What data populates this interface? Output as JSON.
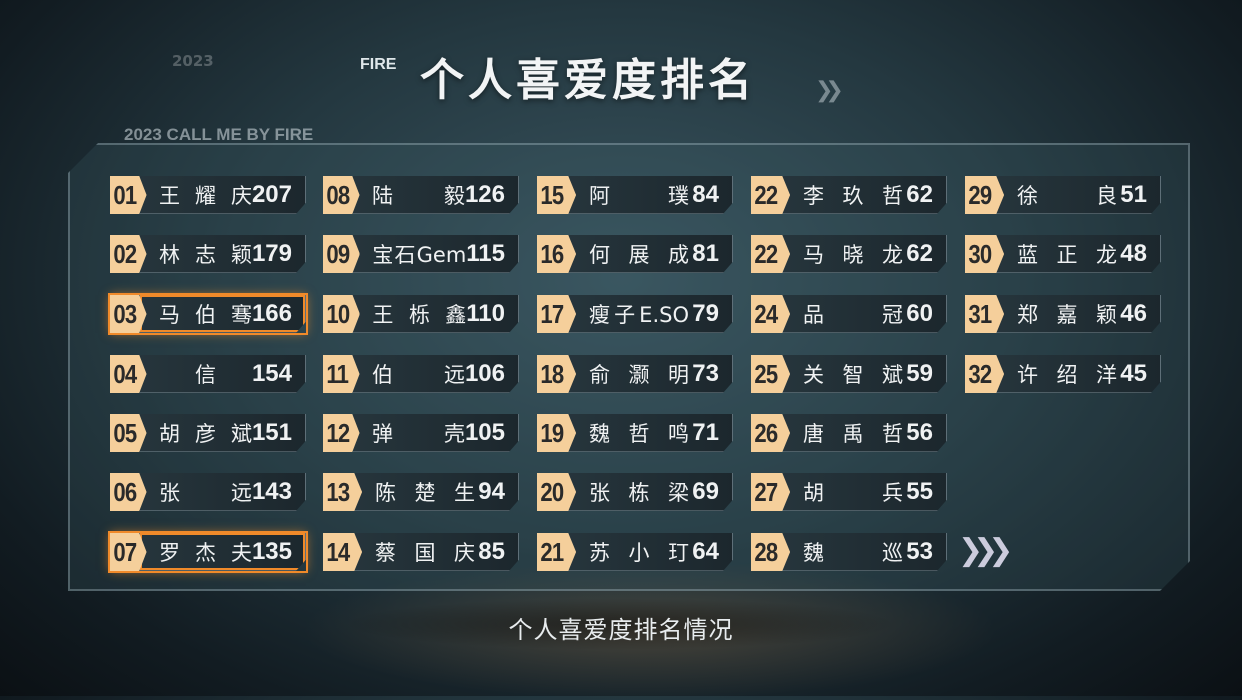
{
  "header": {
    "faded_year": "2023",
    "logo_text": "FIRE",
    "title": "个人喜爱度排名",
    "subtitle": "2023 CALL ME BY FIRE"
  },
  "accent_color": "#f5cf9b",
  "highlight_color": "#f08a2a",
  "columns": [
    [
      {
        "rank": "01",
        "name": "王耀庆",
        "score": "207"
      },
      {
        "rank": "02",
        "name": "林志颖",
        "score": "179"
      },
      {
        "rank": "03",
        "name": "马伯骞",
        "score": "166",
        "highlight": true
      },
      {
        "rank": "04",
        "name": "信",
        "score": "154"
      },
      {
        "rank": "05",
        "name": "胡彦斌",
        "score": "151"
      },
      {
        "rank": "06",
        "name": "张　远",
        "score": "143"
      },
      {
        "rank": "07",
        "name": "罗杰夫",
        "score": "135",
        "highlight": true
      }
    ],
    [
      {
        "rank": "08",
        "name": "陆　毅",
        "score": "126"
      },
      {
        "rank": "09",
        "name": "宝石Gem",
        "score": "115"
      },
      {
        "rank": "10",
        "name": "王栎鑫",
        "score": "110"
      },
      {
        "rank": "11",
        "name": "伯　远",
        "score": "106"
      },
      {
        "rank": "12",
        "name": "弹　壳",
        "score": "105"
      },
      {
        "rank": "13",
        "name": "陈楚生",
        "score": "94"
      },
      {
        "rank": "14",
        "name": "蔡国庆",
        "score": "85"
      }
    ],
    [
      {
        "rank": "15",
        "name": "阿　璞",
        "score": "84"
      },
      {
        "rank": "16",
        "name": "何展成",
        "score": "81"
      },
      {
        "rank": "17",
        "name": "瘦子E.SO",
        "score": "79"
      },
      {
        "rank": "18",
        "name": "俞灏明",
        "score": "73"
      },
      {
        "rank": "19",
        "name": "魏哲鸣",
        "score": "71"
      },
      {
        "rank": "20",
        "name": "张栋梁",
        "score": "69"
      },
      {
        "rank": "21",
        "name": "苏小玎",
        "score": "64"
      }
    ],
    [
      {
        "rank": "22",
        "name": "李玖哲",
        "score": "62"
      },
      {
        "rank": "22",
        "name": "马晓龙",
        "score": "62"
      },
      {
        "rank": "24",
        "name": "品　冠",
        "score": "60"
      },
      {
        "rank": "25",
        "name": "关智斌",
        "score": "59"
      },
      {
        "rank": "26",
        "name": "唐禹哲",
        "score": "56"
      },
      {
        "rank": "27",
        "name": "胡　兵",
        "score": "55"
      },
      {
        "rank": "28",
        "name": "魏　巡",
        "score": "53"
      }
    ],
    [
      {
        "rank": "29",
        "name": "徐　良",
        "score": "51"
      },
      {
        "rank": "30",
        "name": "蓝正龙",
        "score": "48"
      },
      {
        "rank": "31",
        "name": "郑嘉颖",
        "score": "46"
      },
      {
        "rank": "32",
        "name": "许绍洋",
        "score": "45"
      }
    ]
  ],
  "more_icon": "double-chevron-right-icon",
  "caption": "个人喜爱度排名情况"
}
